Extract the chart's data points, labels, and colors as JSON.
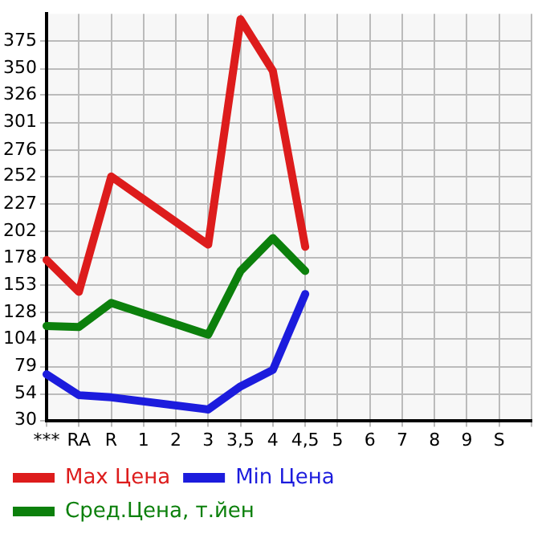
{
  "chart_data": {
    "type": "line",
    "categories": [
      "***",
      "RA",
      "R",
      "1",
      "2",
      "3",
      "3,5",
      "4",
      "4,5",
      "5",
      "6",
      "7",
      "8",
      "9",
      "S",
      null
    ],
    "series": [
      {
        "name": "Max Цена",
        "color": "#dd1c1c",
        "values": [
          176,
          147,
          252,
          null,
          null,
          190,
          395,
          348,
          188,
          null,
          null,
          null,
          null,
          null,
          null,
          null
        ]
      },
      {
        "name": "Min Цена",
        "color": "#1c1cdd",
        "values": [
          72,
          53,
          51,
          null,
          null,
          40,
          61,
          76,
          145,
          null,
          null,
          null,
          null,
          null,
          null,
          null
        ]
      },
      {
        "name": "Сред.Цена, т.йен",
        "color": "#0c800c",
        "values": [
          116,
          115,
          137,
          null,
          null,
          108,
          166,
          196,
          166,
          null,
          null,
          null,
          null,
          null,
          null,
          null
        ]
      }
    ],
    "ylim": [
      30,
      400
    ],
    "yticks": [
      30,
      54,
      79,
      104,
      128,
      153,
      178,
      202,
      227,
      252,
      276,
      301,
      326,
      350,
      375
    ],
    "grid": true,
    "legend": "bottom",
    "marker": "none",
    "line_style": "solid"
  }
}
